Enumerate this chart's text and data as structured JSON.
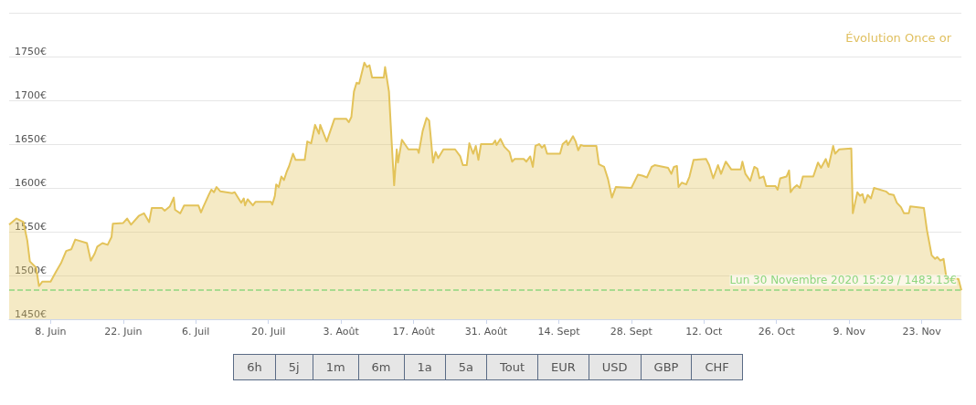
{
  "chart_data": {
    "type": "area",
    "title": "Évolution Once or",
    "x": [
      "2020-05-31",
      "2020-06-01T10:00",
      "2020-06-02T18:00",
      "2020-06-03T12:00",
      "2020-06-04",
      "2020-06-05T05:00",
      "2020-06-05T18:00",
      "2020-06-06T10:00",
      "2020-06-08",
      "2020-06-09",
      "2020-06-10",
      "2020-06-11",
      "2020-06-12",
      "2020-06-12T18:00",
      "2020-06-15",
      "2020-06-15T18:00",
      "2020-06-16T12:00",
      "2020-06-17",
      "2020-06-18",
      "2020-06-19",
      "2020-06-19T18:00",
      "2020-06-20",
      "2020-06-22",
      "2020-06-22T18:00",
      "2020-06-23T12:00",
      "2020-06-25",
      "2020-06-26",
      "2020-06-27",
      "2020-06-27T12:00",
      "2020-06-29T12:00",
      "2020-06-30",
      "2020-07-01",
      "2020-07-01T18:00",
      "2020-07-02",
      "2020-07-03",
      "2020-07-03T18:00",
      "2020-07-06T12:00",
      "2020-07-07",
      "2020-07-07T12:00",
      "2020-07-08T12:00",
      "2020-07-09",
      "2020-07-09T12:00",
      "2020-07-10",
      "2020-07-10T18:00",
      "2020-07-13",
      "2020-07-13T12:00",
      "2020-07-14T18:00",
      "2020-07-15T06:00",
      "2020-07-15T12:00",
      "2020-07-16",
      "2020-07-17",
      "2020-07-17T12:00",
      "2020-07-20T12:00",
      "2020-07-20T18:00",
      "2020-07-21T06:00",
      "2020-07-21T12:00",
      "2020-07-22",
      "2020-07-22T12:00",
      "2020-07-23",
      "2020-07-23T12:00",
      "2020-07-24",
      "2020-07-24T18:00",
      "2020-07-25T06:00",
      "2020-07-27",
      "2020-07-27T12:00",
      "2020-07-28T06:00",
      "2020-07-29",
      "2020-07-29T18:00",
      "2020-07-30",
      "2020-07-31T06:00",
      "2020-08-01T18:00",
      "2020-08-04",
      "2020-08-04T12:00",
      "2020-08-05",
      "2020-08-05T12:00",
      "2020-08-06",
      "2020-08-06T12:00",
      "2020-08-07T12:00",
      "2020-08-08",
      "2020-08-08T12:00",
      "2020-08-09",
      "2020-08-11T06:00",
      "2020-08-11T12:00",
      "2020-08-12T06:00",
      "2020-08-12T18:00",
      "2020-08-13T06:00",
      "2020-08-13T18:00",
      "2020-08-14",
      "2020-08-14T18:00",
      "2020-08-16",
      "2020-08-17T18:00",
      "2020-08-18",
      "2020-08-18T18:00",
      "2020-08-19T12:00",
      "2020-08-20",
      "2020-08-20T06:00",
      "2020-08-20T18:00",
      "2020-08-21T06:00",
      "2020-08-21T18:00",
      "2020-08-22T18:00",
      "2020-08-25",
      "2020-08-26",
      "2020-08-26T12:00",
      "2020-08-27T06:00",
      "2020-08-27T18:00",
      "2020-08-28T12:00",
      "2020-08-29",
      "2020-08-29T12:00",
      "2020-08-30",
      "2020-09-01T06:00",
      "2020-09-01T18:00",
      "2020-09-02",
      "2020-09-02T18:00",
      "2020-09-03T12:00",
      "2020-09-04T12:00",
      "2020-09-05",
      "2020-09-05T12:00",
      "2020-09-07T06:00",
      "2020-09-07T18:00",
      "2020-09-08T12:00",
      "2020-09-09",
      "2020-09-09T12:00",
      "2020-09-10T06:00",
      "2020-09-10T18:00",
      "2020-09-11T06:00",
      "2020-09-11T18:00",
      "2020-09-14T06:00",
      "2020-09-14T18:00",
      "2020-09-15T12:00",
      "2020-09-15T18:00",
      "2020-09-16T18:00",
      "2020-09-17T06:00",
      "2020-09-17T18:00",
      "2020-09-18T06:00",
      "2020-09-18T18:00",
      "2020-09-21T06:00",
      "2020-09-21T18:00",
      "2020-09-22T18:00",
      "2020-09-23T12:00",
      "2020-09-24T06:00",
      "2020-09-25",
      "2020-09-28",
      "2020-09-29T06:00",
      "2020-09-30T02:00",
      "2020-10-01",
      "2020-10-01T22:00",
      "2020-10-02T12:00",
      "2020-10-05T02:00",
      "2020-10-05T17:00",
      "2020-10-06T05:00",
      "2020-10-06T19:00",
      "2020-10-07T02:00",
      "2020-10-07T17:00",
      "2020-10-08T14:00",
      "2020-10-09T05:00",
      "2020-10-10",
      "2020-10-12T10:00",
      "2020-10-13",
      "2020-10-13T19:00",
      "2020-10-14T17:00",
      "2020-10-15T07:00",
      "2020-10-16T05:00",
      "2020-10-17T07:00",
      "2020-10-19T02:00",
      "2020-10-19T10:00",
      "2020-10-20",
      "2020-10-20T14:00",
      "2020-10-20T22:00",
      "2020-10-21T17:00",
      "2020-10-22T07:00",
      "2020-10-22T17:00",
      "2020-10-23T12:00",
      "2020-10-24",
      "2020-10-25T19:00",
      "2020-10-26T05:00",
      "2020-10-26T17:00",
      "2020-10-27T22:00",
      "2020-10-28T10:00",
      "2020-10-28T17:00",
      "2020-10-29T07:00",
      "2020-10-29T22:00",
      "2020-10-30T12:00",
      "2020-10-31T02:00",
      "2020-11-02T02:00",
      "2020-11-03",
      "2020-11-03T14:00",
      "2020-11-04T12:00",
      "2020-11-05",
      "2020-11-05T22:00",
      "2020-11-06T07:00",
      "2020-11-07T02:00",
      "2020-11-09T10:00",
      "2020-11-09T17:00",
      "2020-11-10T14:00",
      "2020-11-11T02:00",
      "2020-11-11T14:00",
      "2020-11-12",
      "2020-11-12T14:00",
      "2020-11-13T05:00",
      "2020-11-13T19:00",
      "2020-11-16T02:00",
      "2020-11-16T17:00",
      "2020-11-17T14:00",
      "2020-11-18T05:00",
      "2020-11-19",
      "2020-11-19T14:00",
      "2020-11-20T12:00",
      "2020-11-20T19:00",
      "2020-11-23T10:00",
      "2020-11-24",
      "2020-11-24T22:00",
      "2020-11-25T14:00",
      "2020-11-26",
      "2020-11-26T14:00",
      "2020-11-27T05:00",
      "2020-11-27T19:00",
      "2020-11-30T02:00",
      "2020-11-30T15:29"
    ],
    "series": [
      {
        "color": "#e3c35a",
        "values": [
          1558,
          1565,
          1561,
          1540,
          1516,
          1509,
          1488,
          1493,
          1493,
          1504,
          1514,
          1528,
          1530,
          1541,
          1537,
          1517,
          1525,
          1533,
          1537,
          1535,
          1544,
          1559,
          1560,
          1565,
          1558,
          1568,
          1571,
          1561,
          1577,
          1577,
          1574,
          1579,
          1589,
          1575,
          1571,
          1580,
          1580,
          1572,
          1579,
          1592,
          1598,
          1595,
          1601,
          1596,
          1594,
          1595,
          1583,
          1588,
          1580,
          1587,
          1580,
          1584,
          1584,
          1581,
          1591,
          1604,
          1601,
          1613,
          1609,
          1618,
          1625,
          1639,
          1632,
          1632,
          1653,
          1651,
          1672,
          1662,
          1672,
          1653,
          1679,
          1679,
          1675,
          1681,
          1710,
          1720,
          1719,
          1743,
          1738,
          1740,
          1726,
          1726,
          1738,
          1710,
          1655,
          1603,
          1644,
          1629,
          1655,
          1644,
          1644,
          1640,
          1665,
          1680,
          1677,
          1662,
          1629,
          1641,
          1634,
          1644,
          1644,
          1636,
          1626,
          1626,
          1651,
          1639,
          1648,
          1632,
          1650,
          1650,
          1654,
          1649,
          1656,
          1647,
          1641,
          1630,
          1633,
          1633,
          1630,
          1636,
          1624,
          1648,
          1650,
          1646,
          1649,
          1639,
          1639,
          1650,
          1654,
          1649,
          1659,
          1653,
          1643,
          1649,
          1648,
          1648,
          1627,
          1624,
          1610,
          1589,
          1601,
          1600,
          1615,
          1614,
          1612,
          1624,
          1626,
          1623,
          1616,
          1624,
          1625,
          1601,
          1606,
          1604,
          1613,
          1632,
          1633,
          1626,
          1611,
          1626,
          1616,
          1630,
          1621,
          1621,
          1630,
          1616,
          1611,
          1608,
          1624,
          1622,
          1611,
          1613,
          1602,
          1602,
          1598,
          1611,
          1613,
          1620,
          1595,
          1600,
          1603,
          1600,
          1613,
          1613,
          1629,
          1623,
          1633,
          1624,
          1648,
          1639,
          1644,
          1645,
          1571,
          1595,
          1591,
          1593,
          1583,
          1592,
          1588,
          1600,
          1596,
          1593,
          1592,
          1583,
          1578,
          1571,
          1571,
          1579,
          1577,
          1552,
          1523,
          1519,
          1521,
          1517,
          1519,
          1496,
          1496,
          1483.13
        ]
      }
    ],
    "xlim": [
      "2020-05-31",
      "2020-11-30T15:29"
    ],
    "xticks": [
      {
        "value": "2020-06-08",
        "label": "8. Juin"
      },
      {
        "value": "2020-06-22",
        "label": "22. Juin"
      },
      {
        "value": "2020-07-06",
        "label": "6. Juil"
      },
      {
        "value": "2020-07-20",
        "label": "20. Juil"
      },
      {
        "value": "2020-08-03",
        "label": "3. Août"
      },
      {
        "value": "2020-08-17",
        "label": "17. Août"
      },
      {
        "value": "2020-08-31",
        "label": "31. Août"
      },
      {
        "value": "2020-09-14",
        "label": "14. Sept"
      },
      {
        "value": "2020-09-28",
        "label": "28. Sept"
      },
      {
        "value": "2020-10-12",
        "label": "12. Oct"
      },
      {
        "value": "2020-10-26",
        "label": "26. Oct"
      },
      {
        "value": "2020-11-09",
        "label": "9. Nov"
      },
      {
        "value": "2020-11-23",
        "label": "23. Nov"
      }
    ],
    "ylim": [
      1450,
      1800
    ],
    "yticks": [
      {
        "value": 1450,
        "label": "1450€"
      },
      {
        "value": 1500,
        "label": "1500€"
      },
      {
        "value": 1550,
        "label": "1550€"
      },
      {
        "value": 1600,
        "label": "1600€"
      },
      {
        "value": 1650,
        "label": "1650€"
      },
      {
        "value": 1700,
        "label": "1700€"
      },
      {
        "value": 1750,
        "label": "1750€"
      },
      {
        "value": 1800,
        "label": null
      }
    ],
    "grid": "y",
    "ref_lines": [
      {
        "axis": "y",
        "value": 1483.13,
        "label": "Lun 30 Novembre 2020 15:29 / 1483.13€",
        "color": "#8fd67f",
        "line_style": "dashed"
      }
    ],
    "annotations": [
      "6h",
      "5j",
      "1m",
      "6m",
      "1a",
      "5a",
      "Tout",
      "EUR",
      "USD",
      "GBP",
      "CHF"
    ]
  }
}
